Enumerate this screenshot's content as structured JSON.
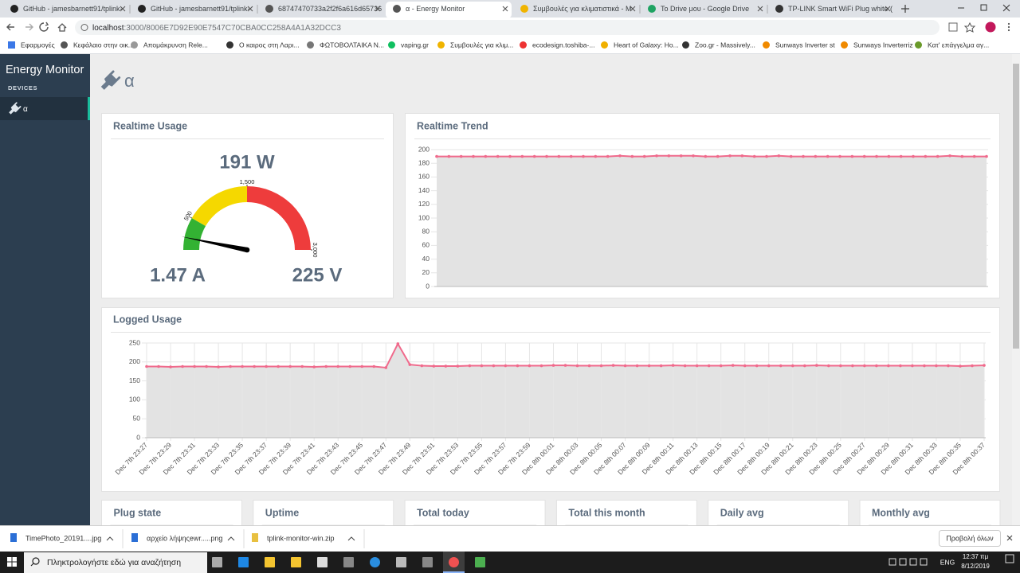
{
  "browser": {
    "tabs": [
      {
        "title": "GitHub - jamesbarnett91/tplink-",
        "active": false
      },
      {
        "title": "GitHub - jamesbarnett91/tplink-",
        "active": false
      },
      {
        "title": "68747470733a2f2f6a616d65736",
        "active": false
      },
      {
        "title": "α - Energy Monitor",
        "active": true
      },
      {
        "title": "Συμβουλές για κλιματιστικά - M",
        "active": false
      },
      {
        "title": "To Drive μου - Google Drive",
        "active": false
      },
      {
        "title": "TP-LINK Smart WiFi Plug white (",
        "active": false
      }
    ],
    "url_host": "localhost",
    "url_rest": ":3000/8006E7D92E90E7547C70CBA0CC258A4A1A32DCC3",
    "bookmarks": [
      "Εφαρμογές",
      "Κεφάλαιο στην οικ...",
      "Απομάκρυνση Rele...",
      "Ο καιρος στη Λαρι...",
      "ΦΩΤΟΒΟΛΤΑΙΚΑ Ν...",
      "vaping.gr",
      "Συμβουλές για κλιμ...",
      "ecodesign.toshiba-...",
      "Heart of Galaxy: Ho...",
      "Zoo.gr - Massively...",
      "Sunways Inverter st",
      "Sunways Inverterriz",
      "Κατ' επάγγελμα αγ..."
    ]
  },
  "sidebar": {
    "brand": "Energy Monitor",
    "section": "DEVICES",
    "devices": [
      "α"
    ]
  },
  "header": {
    "title": "α"
  },
  "realtime_usage": {
    "title": "Realtime Usage",
    "gauge": {
      "value": 191,
      "value_label": "191 W",
      "lim": [
        0,
        3000
      ],
      "ticks": [
        500,
        {
          "value": 1500,
          "label": "1,500"
        },
        {
          "value": 3000,
          "label": "3,000"
        }
      ],
      "bands": [
        {
          "from": 0,
          "to": 500,
          "color": "#33b233"
        },
        {
          "from": 500,
          "to": 1500,
          "color": "#f5d800"
        },
        {
          "from": 1500,
          "to": 3000,
          "color": "#ee3c3c"
        }
      ]
    },
    "current": "1.47 A",
    "voltage": "225 V"
  },
  "realtime_trend": {
    "type": "line",
    "title": "Realtime Trend",
    "color": "#f06a8c",
    "fill": "#e3e3e3",
    "values": [
      190,
      190,
      190,
      190,
      190,
      190,
      190,
      190,
      190,
      190,
      190,
      190,
      190,
      190,
      190,
      191,
      190,
      190,
      191,
      191,
      191,
      191,
      190,
      190,
      191,
      191,
      190,
      190,
      191,
      190,
      190,
      190,
      190,
      190,
      190,
      190,
      190,
      190,
      190,
      190,
      190,
      190,
      191,
      190,
      190,
      190
    ],
    "ylim": [
      0,
      200
    ],
    "yticks": [
      0,
      20,
      40,
      60,
      80,
      100,
      120,
      140,
      160,
      180,
      200
    ],
    "grid": true,
    "xgrid": false
  },
  "logged_usage": {
    "type": "line",
    "title": "Logged Usage",
    "color": "#f06a8c",
    "fill": "#e3e3e3",
    "categories": [
      "Dec 7th 23:27",
      null,
      "Dec 7th 23:29",
      null,
      "Dec 7th 23:31",
      null,
      "Dec 7th 23:33",
      null,
      "Dec 7th 23:35",
      null,
      "Dec 7th 23:37",
      null,
      "Dec 7th 23:39",
      null,
      "Dec 7th 23:41",
      null,
      "Dec 7th 23:43",
      null,
      "Dec 7th 23:45",
      null,
      "Dec 7th 23:47",
      null,
      "Dec 7th 23:49",
      null,
      "Dec 7th 23:51",
      null,
      "Dec 7th 23:53",
      null,
      "Dec 7th 23:55",
      null,
      "Dec 7th 23:57",
      null,
      "Dec 7th 23:59",
      null,
      "Dec 8th 00:01",
      null,
      "Dec 8th 00:03",
      null,
      "Dec 8th 00:05",
      null,
      "Dec 8th 00:07",
      null,
      "Dec 8th 00:09",
      null,
      "Dec 8th 00:11",
      null,
      "Dec 8th 00:13",
      null,
      "Dec 8th 00:15",
      null,
      "Dec 8th 00:17",
      null,
      "Dec 8th 00:19",
      null,
      "Dec 8th 00:21",
      null,
      "Dec 8th 00:23",
      null,
      "Dec 8th 00:25",
      null,
      "Dec 8th 00:27",
      null,
      "Dec 8th 00:29",
      null,
      "Dec 8th 00:31",
      null,
      "Dec 8th 00:33",
      null,
      "Dec 8th 00:35",
      null,
      "Dec 8th 00:37"
    ],
    "values": [
      188,
      188,
      187,
      188,
      188,
      188,
      187,
      188,
      188,
      188,
      188,
      188,
      188,
      188,
      187,
      188,
      188,
      188,
      188,
      188,
      185,
      248,
      193,
      190,
      189,
      189,
      189,
      190,
      190,
      190,
      190,
      190,
      190,
      190,
      191,
      191,
      190,
      190,
      190,
      191,
      190,
      190,
      190,
      190,
      191,
      190,
      190,
      190,
      190,
      191,
      190,
      190,
      190,
      190,
      190,
      190,
      191,
      190,
      190,
      190,
      190,
      190,
      190,
      190,
      190,
      190,
      190,
      190,
      189,
      190,
      191
    ],
    "ylim": [
      0,
      250
    ],
    "yticks": [
      0,
      50,
      100,
      150,
      200,
      250
    ],
    "grid": true,
    "xgrid": true
  },
  "cards": [
    "Plug state",
    "Uptime",
    "Total today",
    "Total this month",
    "Daily avg",
    "Monthly avg"
  ],
  "downloads": {
    "items": [
      "TimePhoto_20191....jpg",
      "αρχείο λήψηςewr.....png",
      "tplink-monitor-win.zip"
    ],
    "show_all": "Προβολή όλων"
  },
  "taskbar": {
    "search": "Πληκτρολογήστε εδώ για αναζήτηση",
    "language": "ENG",
    "time": "12:37 πμ",
    "date": "8/12/2019"
  }
}
